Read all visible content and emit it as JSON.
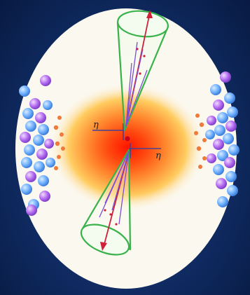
{
  "labels": {
    "eta_left": "η",
    "eta_right": "η"
  },
  "colors": {
    "background": "#12306b",
    "ellipse": "#fbf8ef",
    "hot_core": "#ff1a00",
    "hot_halo": "#ffd75a",
    "jet_cone": "#38b24a",
    "jet_axis": "#d0203a",
    "tracks": "#7a4fd6",
    "proton_blue": "#6fb0ff",
    "proton_purple": "#b46cf0",
    "debris": "#f07a3a",
    "axis_line": "#4a4090"
  },
  "icons": {
    "upper_jet": "cone-jet-icon",
    "lower_jet": "cone-jet-icon",
    "left_nucleus": "nucleus-cluster-icon",
    "right_nucleus": "nucleus-cluster-icon"
  }
}
